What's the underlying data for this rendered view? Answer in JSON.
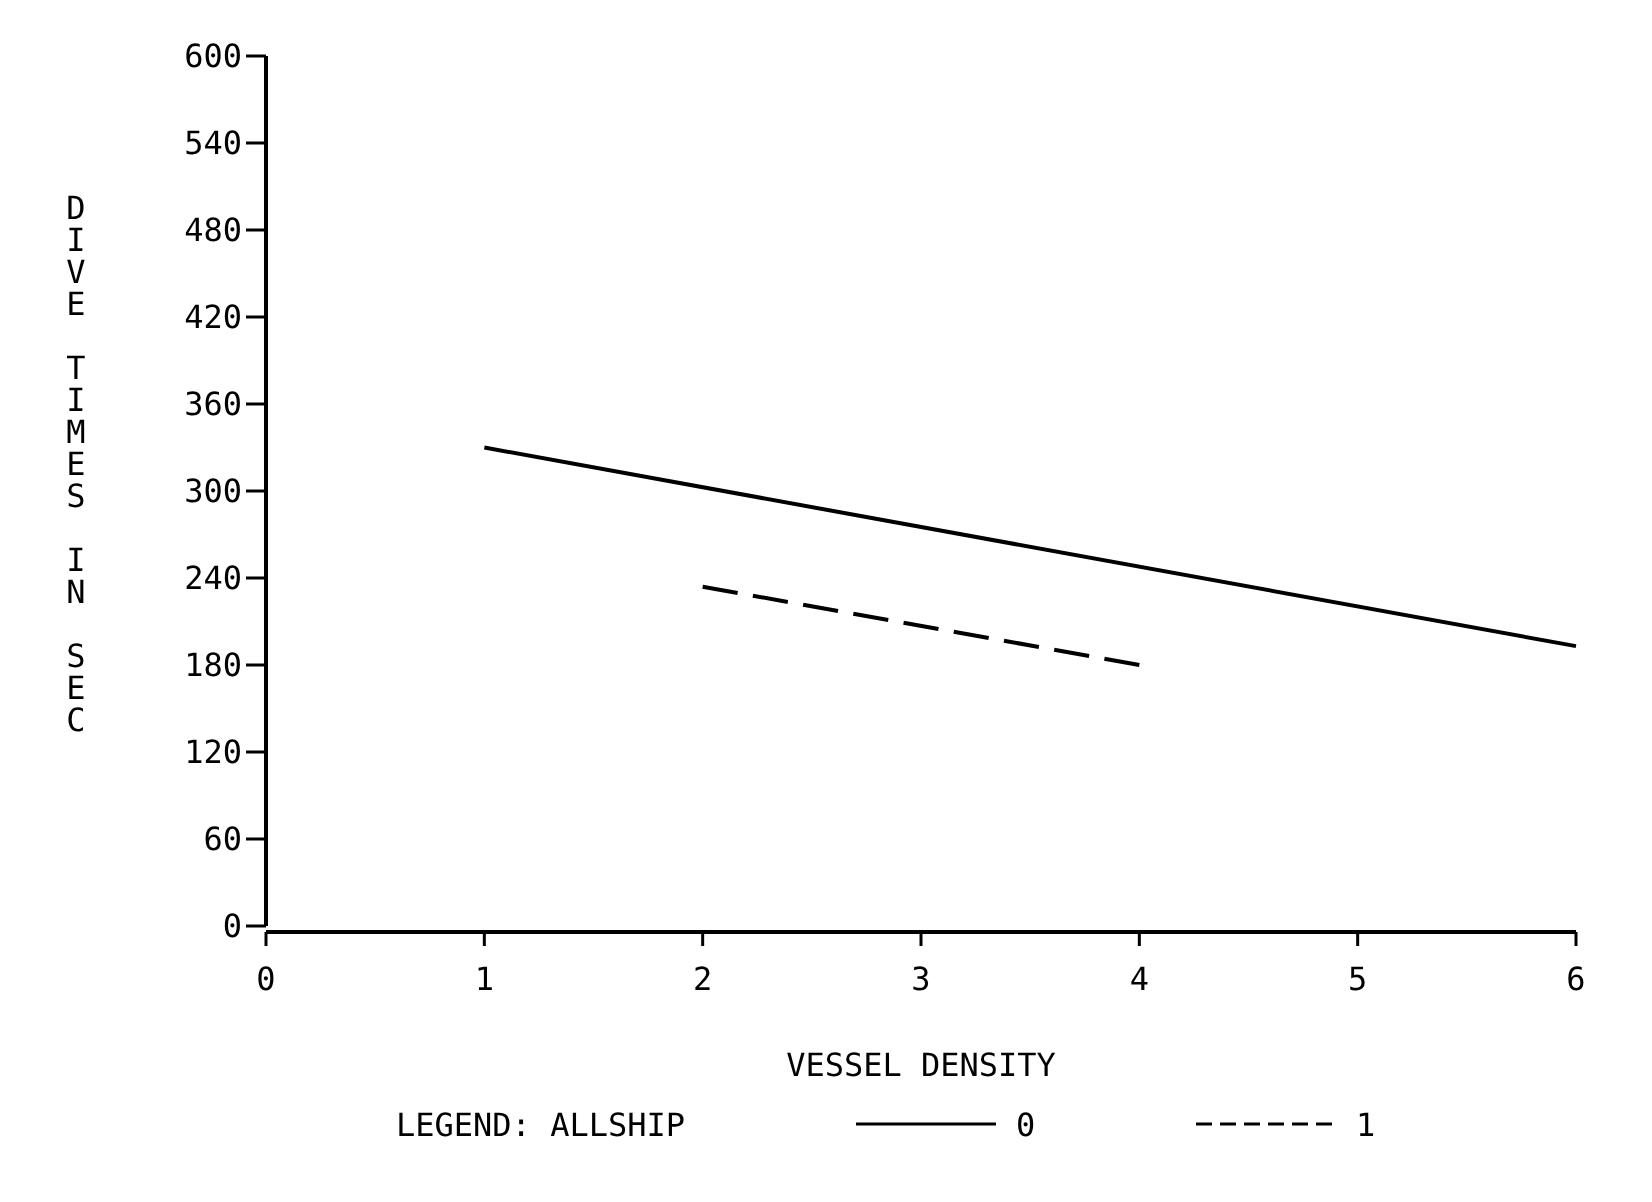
{
  "chart_data": {
    "type": "line",
    "xlabel": "VESSEL DENSITY",
    "ylabel": "DIVE TIMES IN SEC",
    "legend_title": "LEGEND: ALLSHIP",
    "legend": "bottom",
    "marker": "none",
    "xlim": [
      0,
      6
    ],
    "xticks": [
      0,
      1,
      2,
      3,
      4,
      5,
      6
    ],
    "ylim": [
      0,
      600
    ],
    "yticks": [
      0,
      60,
      120,
      180,
      240,
      300,
      360,
      420,
      480,
      540,
      600
    ],
    "series": [
      {
        "name": "0",
        "color": "#000000",
        "line_style": "solid",
        "x": [
          1,
          6
        ],
        "values": [
          330,
          193
        ]
      },
      {
        "name": "1",
        "color": "#000000",
        "line_style": "dashed",
        "x": [
          2,
          4
        ],
        "values": [
          234,
          180
        ]
      }
    ]
  }
}
